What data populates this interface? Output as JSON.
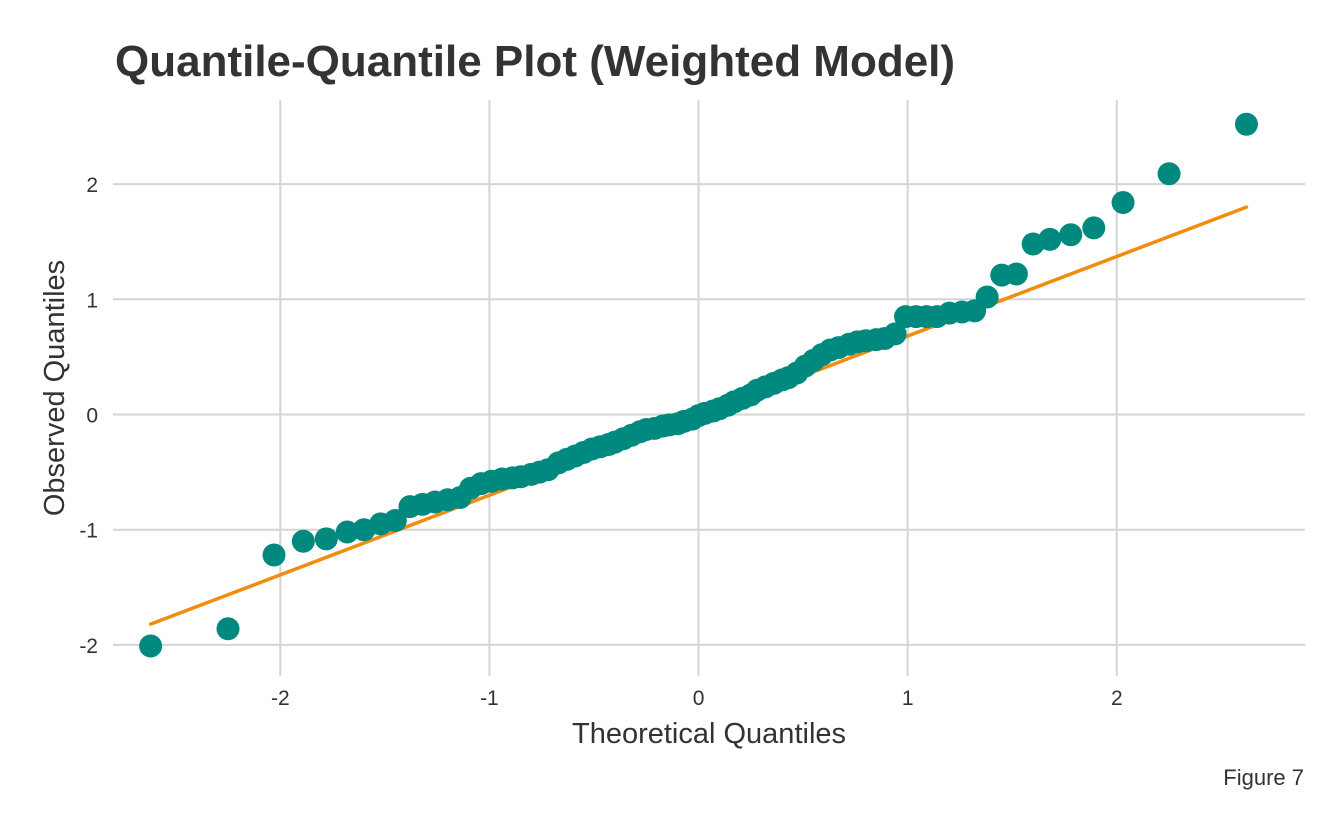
{
  "chart_data": {
    "type": "scatter",
    "title": "Quantile-Quantile Plot (Weighted Model)",
    "xlabel": "Theoretical Quantiles",
    "ylabel": "Observed Quantiles",
    "caption": "Figure 7",
    "xlim": [
      -2.8,
      2.9
    ],
    "ylim": [
      -2.27,
      2.73
    ],
    "x_ticks": [
      -2,
      -1,
      0,
      1,
      2
    ],
    "y_ticks": [
      -2,
      -1,
      0,
      1,
      2
    ],
    "x_tick_labels": [
      "-2",
      "-1",
      "0",
      "1",
      "2"
    ],
    "y_tick_labels": [
      "-2",
      "-1",
      "0",
      "1",
      "2"
    ],
    "grid": true,
    "legend": "none",
    "colors": {
      "points": "#00897f",
      "reference_line": "#f28c0f",
      "grid": "#d4d4d4",
      "text": "#333333"
    },
    "reference_line": {
      "from": [
        -2.62,
        -1.82
      ],
      "to": [
        2.62,
        1.8
      ]
    },
    "points": {
      "x": [
        -2.62,
        -2.25,
        -2.03,
        -1.89,
        -1.78,
        -1.68,
        -1.6,
        -1.52,
        -1.45,
        -1.38,
        -1.32,
        -1.26,
        -1.2,
        -1.14,
        -1.09,
        -1.04,
        -0.99,
        -0.94,
        -0.89,
        -0.85,
        -0.8,
        -0.76,
        -0.72,
        -0.67,
        -0.63,
        -0.59,
        -0.55,
        -0.51,
        -0.47,
        -0.43,
        -0.4,
        -0.36,
        -0.32,
        -0.28,
        -0.25,
        -0.21,
        -0.17,
        -0.14,
        -0.1,
        -0.07,
        -0.03,
        0.0,
        0.03,
        0.07,
        0.1,
        0.14,
        0.17,
        0.21,
        0.25,
        0.28,
        0.32,
        0.36,
        0.4,
        0.43,
        0.47,
        0.51,
        0.55,
        0.59,
        0.63,
        0.67,
        0.72,
        0.76,
        0.8,
        0.85,
        0.89,
        0.94,
        0.99,
        1.04,
        1.09,
        1.14,
        1.2,
        1.26,
        1.32,
        1.38,
        1.45,
        1.52,
        1.6,
        1.68,
        1.78,
        1.89,
        2.03,
        2.25,
        2.62
      ],
      "y": [
        -2.01,
        -1.86,
        -1.22,
        -1.1,
        -1.08,
        -1.02,
        -1.0,
        -0.95,
        -0.92,
        -0.8,
        -0.78,
        -0.76,
        -0.74,
        -0.72,
        -0.64,
        -0.6,
        -0.58,
        -0.56,
        -0.55,
        -0.54,
        -0.52,
        -0.5,
        -0.48,
        -0.42,
        -0.39,
        -0.36,
        -0.33,
        -0.3,
        -0.28,
        -0.26,
        -0.24,
        -0.21,
        -0.18,
        -0.15,
        -0.13,
        -0.12,
        -0.1,
        -0.09,
        -0.08,
        -0.06,
        -0.04,
        -0.01,
        0.01,
        0.03,
        0.05,
        0.08,
        0.11,
        0.14,
        0.17,
        0.21,
        0.24,
        0.27,
        0.3,
        0.32,
        0.36,
        0.42,
        0.47,
        0.52,
        0.56,
        0.58,
        0.61,
        0.63,
        0.64,
        0.65,
        0.66,
        0.7,
        0.85,
        0.85,
        0.85,
        0.85,
        0.88,
        0.89,
        0.9,
        1.02,
        1.21,
        1.22,
        1.48,
        1.52,
        1.56,
        1.62,
        1.84,
        2.09,
        2.52
      ]
    }
  }
}
